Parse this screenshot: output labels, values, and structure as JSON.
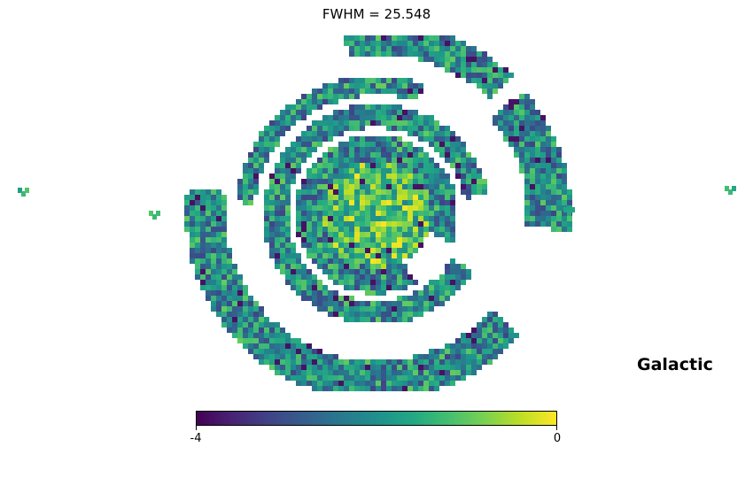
{
  "chart_data": {
    "type": "heatmap",
    "title": "FWHM = 25.548",
    "projection": "mollweide",
    "coord_label": "Galactic",
    "colormap": "viridis",
    "colorbar": {
      "min": -4,
      "max": 0,
      "tick_labels": [
        "-4",
        "0"
      ]
    },
    "typical_value_range": [
      -3.5,
      -0.3
    ],
    "colors": {
      "low": "#440154",
      "mid": "#21918c",
      "high": "#fde725"
    }
  }
}
